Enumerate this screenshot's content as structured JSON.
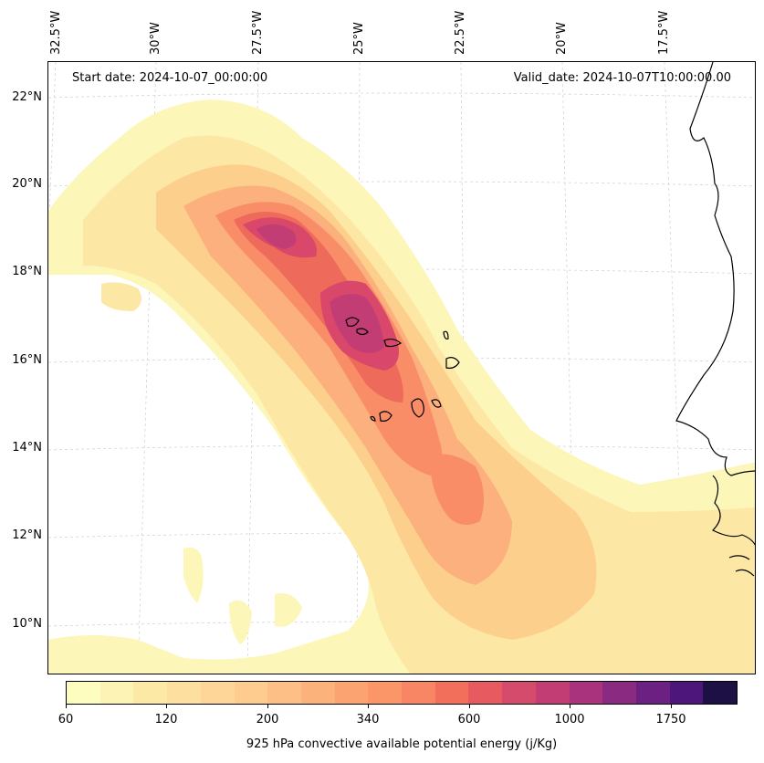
{
  "map": {
    "start_label": "Start date: 2024-10-07_00:00:00",
    "valid_label": "Valid_date: 2024-10-07T10:00:00.00",
    "longitude_labels": [
      "32.5°W",
      "30°W",
      "27.5°W",
      "25°W",
      "22.5°W",
      "20°W",
      "17.5°W"
    ],
    "latitude_labels": [
      "22°N",
      "20°N",
      "18°N",
      "16°N",
      "14°N",
      "12°N",
      "10°N"
    ],
    "field_palette": {
      "lowest": "#fcf6b8",
      "low": "#fde7a4",
      "mid_low": "#fdcf8c",
      "mid": "#fbb07d",
      "mid_high": "#f88d68",
      "high": "#ee6a5a",
      "higher": "#d9476a",
      "highest": "#c33d75"
    },
    "coastline_color": "#000000"
  },
  "colorbar": {
    "colors": [
      "#fcfdbf",
      "#fcf3b4",
      "#fde9a6",
      "#fde0a0",
      "#fdd698",
      "#fdcc8e",
      "#fdbf85",
      "#fcb27b",
      "#fca471",
      "#fb9668",
      "#f88563",
      "#f2705b",
      "#e65a60",
      "#d44b6b",
      "#c33d75",
      "#a9337c",
      "#8a2a80",
      "#6c2081",
      "#4c167a",
      "#1c1044"
    ],
    "tick_labels": [
      "60",
      "120",
      "200",
      "340",
      "600",
      "1000",
      "1750"
    ],
    "label": "925 hPa convective available potential energy (j/Kg)"
  }
}
